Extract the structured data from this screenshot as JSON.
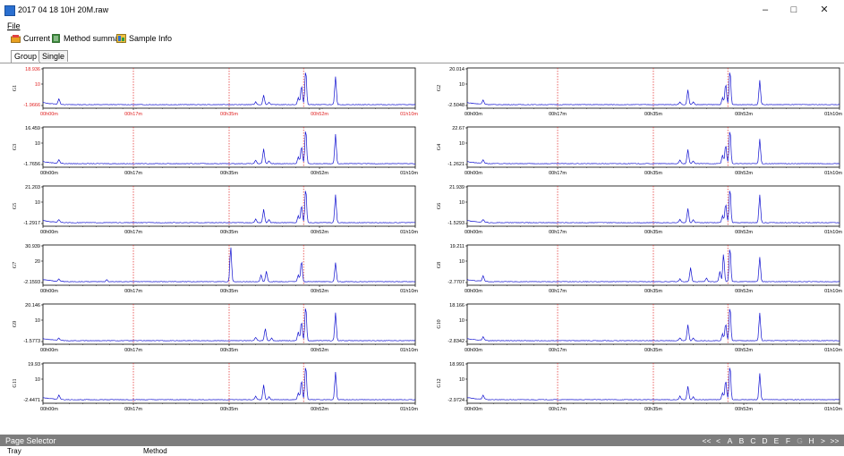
{
  "window": {
    "title": "2017 04 18 10H 20M.raw",
    "min_glyph": "–",
    "max_glyph": "□",
    "close_glyph": "✕"
  },
  "menu": {
    "file": "File"
  },
  "toolbar": {
    "current": "Current",
    "method_summary": "Method summary",
    "sample_info": "Sample Info"
  },
  "tabs": {
    "group": "Group",
    "single": "Single"
  },
  "x_ticks": [
    "00h00m",
    "00h17m",
    "00h35m",
    "00h52m",
    "01h10m"
  ],
  "colors": {
    "trace": "#1010d0",
    "marker": "#e02020",
    "highlight_label": "#e02020"
  },
  "chart_data": [
    {
      "type": "line",
      "ylabel": "G1",
      "ymax_label": "18.936",
      "ymin_label": "-1.9666",
      "mid_label": "10",
      "highlighted": true,
      "x_unit": "min",
      "xlim": [
        0,
        70
      ],
      "markers": [
        17,
        35,
        49
      ],
      "peaks": [
        [
          3,
          0.15
        ],
        [
          40,
          0.08
        ],
        [
          41.5,
          0.27
        ],
        [
          42.5,
          0.07
        ],
        [
          48,
          0.2
        ],
        [
          48.6,
          0.55
        ],
        [
          49.4,
          1.0
        ],
        [
          55,
          0.8
        ]
      ]
    },
    {
      "type": "line",
      "ylabel": "G2",
      "ymax_label": "20.014",
      "ymin_label": "-2.5048",
      "mid_label": "10",
      "highlighted": false,
      "x_unit": "min",
      "xlim": [
        0,
        70
      ],
      "markers": [
        17,
        35,
        49
      ],
      "peaks": [
        [
          3,
          0.12
        ],
        [
          40,
          0.08
        ],
        [
          41.5,
          0.42
        ],
        [
          42.5,
          0.08
        ],
        [
          48,
          0.2
        ],
        [
          48.6,
          0.6
        ],
        [
          49.4,
          1.0
        ],
        [
          55,
          0.7
        ]
      ]
    },
    {
      "type": "line",
      "ylabel": "G3",
      "ymax_label": "16.459",
      "ymin_label": "-1.7656",
      "mid_label": "10",
      "highlighted": false,
      "x_unit": "min",
      "xlim": [
        0,
        70
      ],
      "markers": [
        17,
        35,
        49
      ],
      "peaks": [
        [
          3,
          0.1
        ],
        [
          40,
          0.1
        ],
        [
          41.5,
          0.42
        ],
        [
          42.5,
          0.08
        ],
        [
          48,
          0.2
        ],
        [
          48.6,
          0.5
        ],
        [
          49.4,
          1.0
        ],
        [
          55,
          0.85
        ]
      ]
    },
    {
      "type": "line",
      "ylabel": "G4",
      "ymax_label": "22.67",
      "ymin_label": "-1.2621",
      "mid_label": "10",
      "highlighted": false,
      "x_unit": "min",
      "xlim": [
        0,
        70
      ],
      "markers": [
        17,
        35,
        49
      ],
      "peaks": [
        [
          3,
          0.1
        ],
        [
          40,
          0.1
        ],
        [
          41.5,
          0.4
        ],
        [
          42.5,
          0.08
        ],
        [
          48,
          0.25
        ],
        [
          48.6,
          0.55
        ],
        [
          49.4,
          1.0
        ],
        [
          55,
          0.7
        ]
      ]
    },
    {
      "type": "line",
      "ylabel": "G5",
      "ymax_label": "21.203",
      "ymin_label": "-1.2917",
      "mid_label": "10",
      "highlighted": false,
      "x_unit": "min",
      "xlim": [
        0,
        70
      ],
      "markers": [
        17,
        35,
        49
      ],
      "peaks": [
        [
          3,
          0.08
        ],
        [
          40,
          0.1
        ],
        [
          41.5,
          0.38
        ],
        [
          42.5,
          0.08
        ],
        [
          48,
          0.2
        ],
        [
          48.6,
          0.5
        ],
        [
          49.4,
          1.0
        ],
        [
          55,
          0.8
        ]
      ]
    },
    {
      "type": "line",
      "ylabel": "G6",
      "ymax_label": "21.939",
      "ymin_label": "-1.5293",
      "mid_label": "10",
      "highlighted": false,
      "x_unit": "min",
      "xlim": [
        0,
        70
      ],
      "markers": [
        17,
        35,
        49
      ],
      "peaks": [
        [
          3,
          0.08
        ],
        [
          40,
          0.1
        ],
        [
          41.5,
          0.4
        ],
        [
          42.5,
          0.08
        ],
        [
          48,
          0.2
        ],
        [
          48.6,
          0.55
        ],
        [
          49.4,
          1.0
        ],
        [
          55,
          0.8
        ]
      ]
    },
    {
      "type": "line",
      "ylabel": "G7",
      "ymax_label": "30.939",
      "ymin_label": "-2.1593",
      "mid_label": "20",
      "highlighted": false,
      "x_unit": "min",
      "xlim": [
        0,
        70
      ],
      "markers": [
        17,
        35,
        49
      ],
      "peaks": [
        [
          3,
          0.06
        ],
        [
          12,
          0.06
        ],
        [
          35.3,
          1.0
        ],
        [
          41,
          0.2
        ],
        [
          42,
          0.3
        ],
        [
          48,
          0.2
        ],
        [
          48.6,
          0.6
        ],
        [
          55,
          0.55
        ]
      ]
    },
    {
      "type": "line",
      "ylabel": "G8",
      "ymax_label": "19.211",
      "ymin_label": "-2.7707",
      "mid_label": "10",
      "highlighted": false,
      "x_unit": "min",
      "xlim": [
        0,
        70
      ],
      "markers": [
        17,
        35,
        49
      ],
      "peaks": [
        [
          3,
          0.15
        ],
        [
          40,
          0.08
        ],
        [
          42,
          0.4
        ],
        [
          45,
          0.1
        ],
        [
          47.5,
          0.3
        ],
        [
          48.2,
          0.8
        ],
        [
          49.4,
          1.0
        ],
        [
          55,
          0.7
        ]
      ]
    },
    {
      "type": "line",
      "ylabel": "G9",
      "ymax_label": "20.146",
      "ymin_label": "-1.5773",
      "mid_label": "10",
      "highlighted": false,
      "x_unit": "min",
      "xlim": [
        0,
        70
      ],
      "markers": [
        17,
        35,
        49
      ],
      "peaks": [
        [
          3,
          0.06
        ],
        [
          40,
          0.1
        ],
        [
          41.8,
          0.35
        ],
        [
          43,
          0.08
        ],
        [
          48,
          0.25
        ],
        [
          48.6,
          0.55
        ],
        [
          49.4,
          1.0
        ],
        [
          55,
          0.8
        ]
      ]
    },
    {
      "type": "line",
      "ylabel": "G10",
      "ymax_label": "18.166",
      "ymin_label": "-2.8342",
      "mid_label": "10",
      "highlighted": false,
      "x_unit": "min",
      "xlim": [
        0,
        70
      ],
      "markers": [
        17,
        35,
        49
      ],
      "peaks": [
        [
          3,
          0.1
        ],
        [
          40,
          0.08
        ],
        [
          41.5,
          0.45
        ],
        [
          42.5,
          0.08
        ],
        [
          48,
          0.2
        ],
        [
          48.6,
          0.5
        ],
        [
          49.4,
          1.0
        ],
        [
          55,
          0.8
        ]
      ]
    },
    {
      "type": "line",
      "ylabel": "G11",
      "ymax_label": "19.93",
      "ymin_label": "-2.4471",
      "mid_label": "10",
      "highlighted": false,
      "x_unit": "min",
      "xlim": [
        0,
        70
      ],
      "markers": [
        17,
        35,
        49
      ],
      "peaks": [
        [
          3,
          0.12
        ],
        [
          40,
          0.1
        ],
        [
          41.5,
          0.42
        ],
        [
          42.5,
          0.08
        ],
        [
          48,
          0.2
        ],
        [
          48.6,
          0.55
        ],
        [
          49.4,
          1.0
        ],
        [
          55,
          0.8
        ]
      ]
    },
    {
      "type": "line",
      "ylabel": "G12",
      "ymax_label": "18.991",
      "ymin_label": "-2.9724",
      "mid_label": "10",
      "highlighted": false,
      "x_unit": "min",
      "xlim": [
        0,
        70
      ],
      "markers": [
        17,
        35,
        49
      ],
      "peaks": [
        [
          3,
          0.12
        ],
        [
          40,
          0.1
        ],
        [
          41.5,
          0.38
        ],
        [
          42.5,
          0.08
        ],
        [
          48,
          0.2
        ],
        [
          48.6,
          0.55
        ],
        [
          49.4,
          1.0
        ],
        [
          55,
          0.75
        ]
      ]
    }
  ],
  "page_selector": {
    "label": "Page Selector",
    "nav": [
      "<<",
      "<",
      "A",
      "B",
      "C",
      "D",
      "E",
      "F",
      "G",
      "H",
      ">",
      ">>"
    ],
    "current": "G"
  },
  "footer": {
    "tray": "Tray",
    "method": "Method"
  }
}
